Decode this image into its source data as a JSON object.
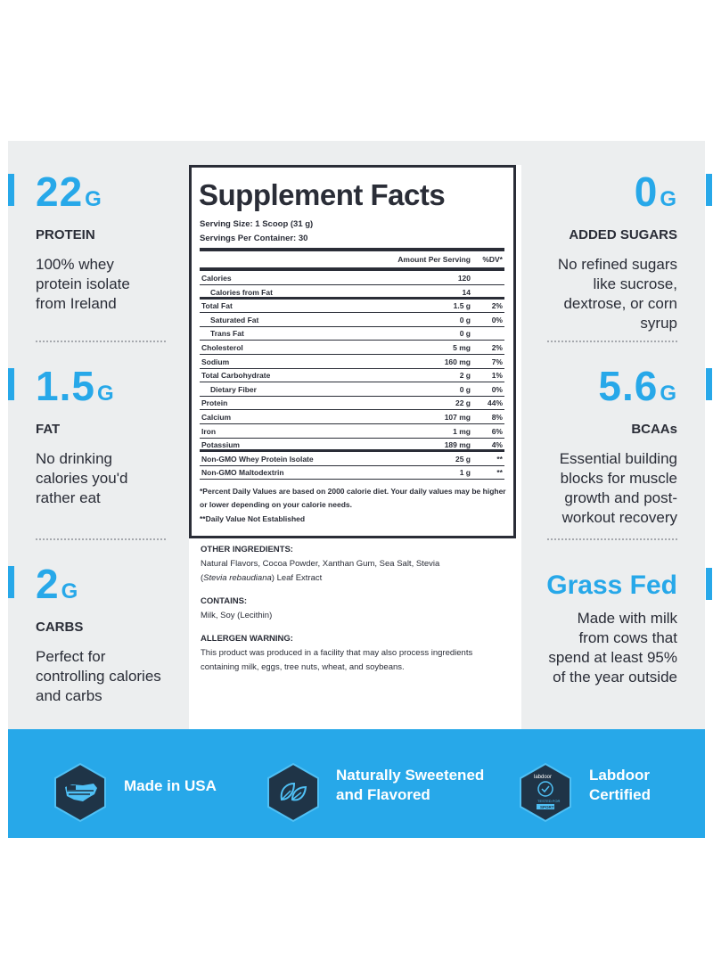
{
  "left_stats": [
    {
      "value": "22",
      "unit": "G",
      "label": "PROTEIN",
      "desc": [
        "100% whey",
        "protein isolate",
        "from Ireland"
      ]
    },
    {
      "value": "1.5",
      "unit": "G",
      "label": "FAT",
      "desc": [
        "No drinking",
        "calories you'd",
        "rather eat"
      ]
    },
    {
      "value": "2",
      "unit": "G",
      "label": "CARBS",
      "desc": [
        "Perfect for",
        "controlling calories",
        "and carbs"
      ]
    }
  ],
  "right_stats": [
    {
      "value": "0",
      "unit": "G",
      "label": "ADDED SUGARS",
      "desc": [
        "No refined sugars",
        "like sucrose,",
        "dextrose, or corn",
        "syrup"
      ]
    },
    {
      "value": "5.6",
      "unit": "G",
      "label": "BCAAs",
      "desc": [
        "Essential building",
        "blocks for muscle",
        "growth and post-",
        "workout recovery"
      ]
    },
    {
      "value": "Grass Fed",
      "unit": "",
      "label": "",
      "desc": [
        "Made with milk",
        "from cows that",
        "spend at least 95%",
        "of the year outside"
      ]
    }
  ],
  "facts": {
    "title": "Supplement Facts",
    "serving_size": "Serving Size: 1 Scoop (31 g)",
    "servings_per_container": "Servings Per Container: 30",
    "header_amount": "Amount Per Serving",
    "header_dv": "%DV*",
    "rows": [
      {
        "name": "Calories",
        "amount": "120",
        "dv": "",
        "indent": false
      },
      {
        "name": "Calories from Fat",
        "amount": "14",
        "dv": "",
        "indent": true
      },
      {
        "name": "Total Fat",
        "amount": "1.5 g",
        "dv": "2%",
        "indent": false
      },
      {
        "name": "Saturated Fat",
        "amount": "0 g",
        "dv": "0%",
        "indent": true
      },
      {
        "name": "Trans Fat",
        "amount": "0 g",
        "dv": "",
        "indent": true
      },
      {
        "name": "Cholesterol",
        "amount": "5 mg",
        "dv": "2%",
        "indent": false
      },
      {
        "name": "Sodium",
        "amount": "160 mg",
        "dv": "7%",
        "indent": false
      },
      {
        "name": "Total Carbohydrate",
        "amount": "2 g",
        "dv": "1%",
        "indent": false
      },
      {
        "name": "Dietary Fiber",
        "amount": "0 g",
        "dv": "0%",
        "indent": true
      },
      {
        "name": "Protein",
        "amount": "22 g",
        "dv": "44%",
        "indent": false
      },
      {
        "name": "Calcium",
        "amount": "107 mg",
        "dv": "8%",
        "indent": false
      },
      {
        "name": "Iron",
        "amount": "1 mg",
        "dv": "6%",
        "indent": false
      },
      {
        "name": "Potassium",
        "amount": "189 mg",
        "dv": "4%",
        "indent": false
      },
      {
        "name": "Non-GMO Whey Protein Isolate",
        "amount": "25 g",
        "dv": "**",
        "indent": false
      },
      {
        "name": "Non-GMO Maltodextrin",
        "amount": "1 g",
        "dv": "**",
        "indent": false
      }
    ],
    "footnote_1": "*Percent Daily Values are based on 2000 calorie diet. Your daily values may be higher or lower depending on your calorie needs.",
    "footnote_2": "**Daily Value Not Established"
  },
  "ingredients": {
    "other_heading": "OTHER INGREDIENTS:",
    "other_text": "Natural Flavors, Cocoa Powder, Xanthan Gum, Sea Salt, Stevia",
    "other_open": "(",
    "other_italic": "Stevia rebaudiana",
    "other_close": ") Leaf Extract",
    "contains_heading": "CONTAINS:",
    "contains_text": "Milk, Soy (Lecithin)",
    "allergen_heading": "ALLERGEN WARNING:",
    "allergen_text": "This product was produced in a facility that may also process ingredients containing milk, eggs, tree nuts, wheat, and soybeans."
  },
  "badges": [
    {
      "icon": "usa-flag-map-icon",
      "lines": [
        "Made in USA"
      ]
    },
    {
      "icon": "leaves-icon",
      "lines": [
        "Naturally Sweetened",
        "and Flavored"
      ]
    },
    {
      "icon": "labdoor-certified-icon",
      "lines": [
        "Labdoor",
        "Certified"
      ],
      "logo_text": "labdoor",
      "logo_sub": "TESTED FOR",
      "logo_tag": "SPORT"
    }
  ],
  "colors": {
    "accent": "#27a8e9",
    "text": "#2a2d37",
    "panel": "#eceeef",
    "badge_fill": "#1f3447"
  }
}
